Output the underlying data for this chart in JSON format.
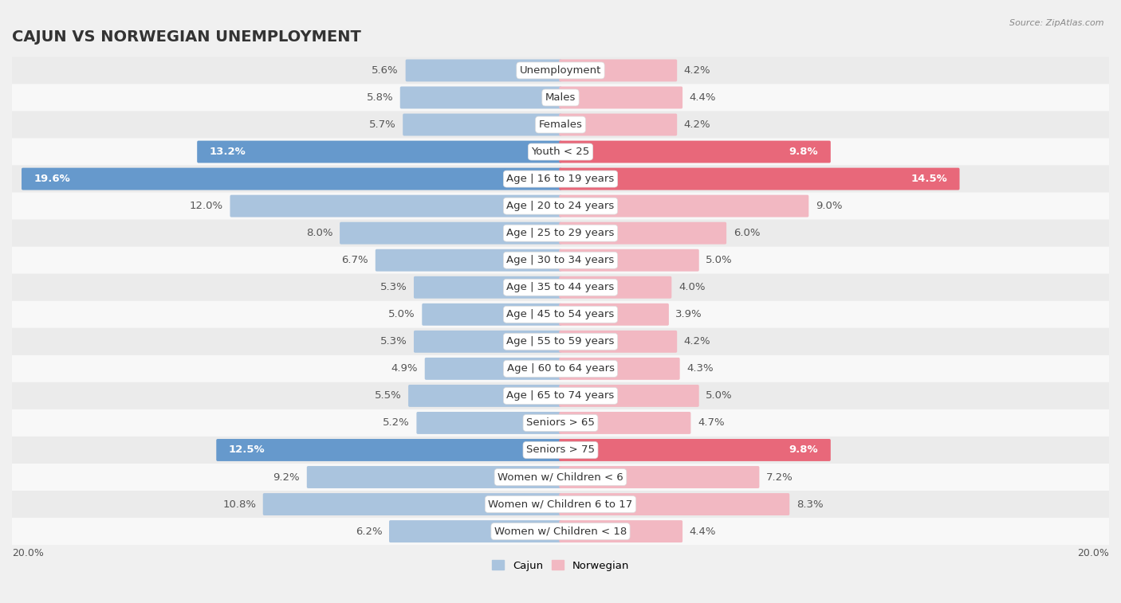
{
  "title": "CAJUN VS NORWEGIAN UNEMPLOYMENT",
  "source": "Source: ZipAtlas.com",
  "categories": [
    "Unemployment",
    "Males",
    "Females",
    "Youth < 25",
    "Age | 16 to 19 years",
    "Age | 20 to 24 years",
    "Age | 25 to 29 years",
    "Age | 30 to 34 years",
    "Age | 35 to 44 years",
    "Age | 45 to 54 years",
    "Age | 55 to 59 years",
    "Age | 60 to 64 years",
    "Age | 65 to 74 years",
    "Seniors > 65",
    "Seniors > 75",
    "Women w/ Children < 6",
    "Women w/ Children 6 to 17",
    "Women w/ Children < 18"
  ],
  "cajun": [
    5.6,
    5.8,
    5.7,
    13.2,
    19.6,
    12.0,
    8.0,
    6.7,
    5.3,
    5.0,
    5.3,
    4.9,
    5.5,
    5.2,
    12.5,
    9.2,
    10.8,
    6.2
  ],
  "norwegian": [
    4.2,
    4.4,
    4.2,
    9.8,
    14.5,
    9.0,
    6.0,
    5.0,
    4.0,
    3.9,
    4.2,
    4.3,
    5.0,
    4.7,
    9.8,
    7.2,
    8.3,
    4.4
  ],
  "cajun_color_normal": "#aac4de",
  "norwegian_color_normal": "#f2b8c2",
  "cajun_color_highlight": "#6699cc",
  "norwegian_color_highlight": "#e8687a",
  "highlight_rows": [
    3,
    4,
    14
  ],
  "axis_max": 20.0,
  "legend_cajun": "Cajun",
  "legend_norwegian": "Norwegian",
  "bg_color_stripe": "#ebebeb",
  "bg_color_white": "#f8f8f8",
  "bar_height": 0.72,
  "title_fontsize": 14,
  "label_fontsize": 9.5,
  "value_fontsize": 9.5
}
